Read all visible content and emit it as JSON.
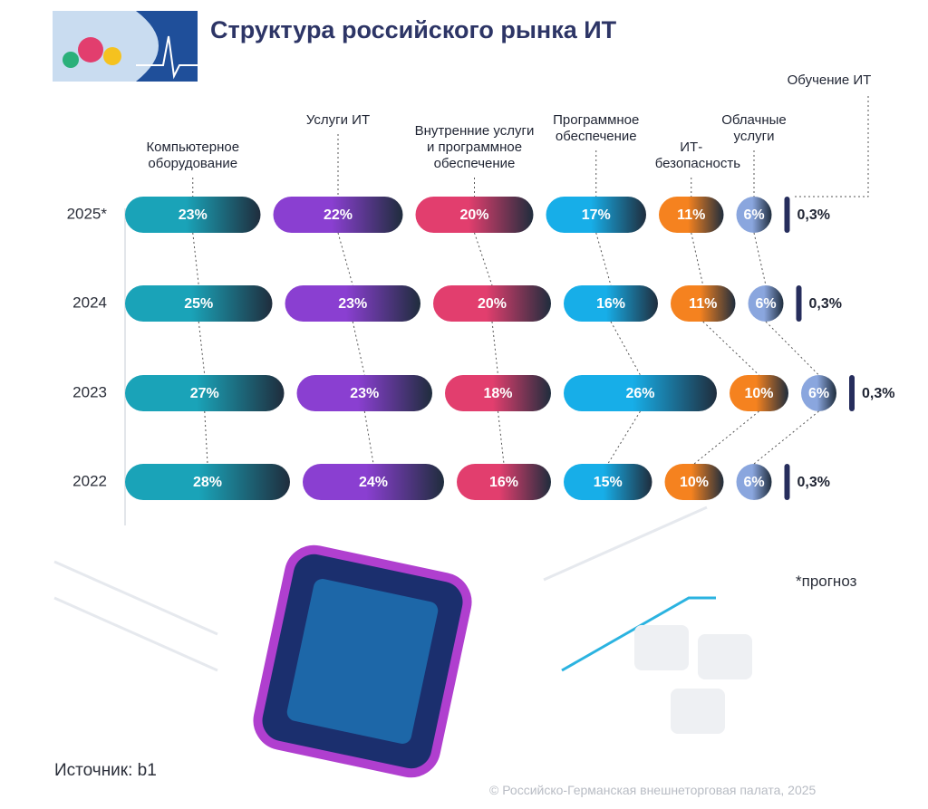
{
  "chart_data": {
    "type": "segmented-bar",
    "title": "Структура российского рынка ИТ",
    "categories": [
      "2025*",
      "2024",
      "2023",
      "2022"
    ],
    "series": [
      {
        "name": "Компьютерное оборудование",
        "color": "#1aa3b8",
        "values": [
          23,
          25,
          27,
          28
        ],
        "value_labels": [
          "23%",
          "25%",
          "27%",
          "28%"
        ]
      },
      {
        "name": "Услуги ИТ",
        "color": "#8a3fd1",
        "values": [
          22,
          23,
          23,
          24
        ],
        "value_labels": [
          "22%",
          "23%",
          "23%",
          "24%"
        ]
      },
      {
        "name": "Внутренние услуги и программное обеспечение",
        "color": "#e23e6e",
        "values": [
          20,
          20,
          18,
          16
        ],
        "value_labels": [
          "20%",
          "20%",
          "18%",
          "16%"
        ]
      },
      {
        "name": "Программное обеспечение",
        "color": "#17aee8",
        "values": [
          17,
          16,
          26,
          15
        ],
        "value_labels": [
          "17%",
          "16%",
          "26%",
          "15%"
        ]
      },
      {
        "name": "ИТ-безопасность",
        "color": "#f5821f",
        "values": [
          11,
          11,
          10,
          10
        ],
        "value_labels": [
          "11%",
          "11%",
          "10%",
          "10%"
        ]
      },
      {
        "name": "Облачные услуги",
        "color": "#8aa6de",
        "values": [
          6,
          6,
          6,
          6
        ],
        "value_labels": [
          "6%",
          "6%",
          "6%",
          "6%"
        ]
      },
      {
        "name": "Обучение ИТ",
        "color": "#262d5c",
        "values": [
          0.3,
          0.3,
          0.3,
          0.3
        ],
        "value_labels": [
          "0,3%",
          "0,3%",
          "0,3%",
          "0,3%"
        ]
      }
    ],
    "footnote": "*прогноз",
    "source": "Источник: b1",
    "copyright": "© Российско-Германская внешнеторговая палата, 2025"
  }
}
